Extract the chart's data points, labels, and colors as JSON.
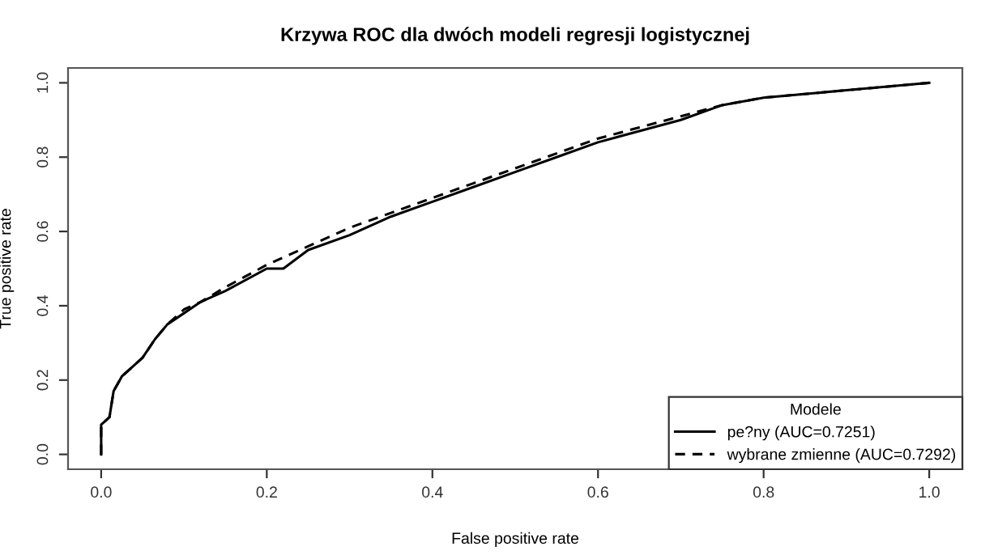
{
  "chart_data": {
    "type": "line",
    "title": "Krzywa ROC dla dwóch modeli regresji logistycznej",
    "xlabel": "False positive rate",
    "ylabel": "True positive rate",
    "legend_title": "Modele",
    "legend": "bottom right",
    "grid": false,
    "marker": "none",
    "xlim": [
      -0.04,
      1.04
    ],
    "ylim": [
      -0.04,
      1.04
    ],
    "xticks": [
      {
        "value": 0,
        "label": "0.0"
      },
      0.2,
      0.4,
      0.6,
      0.8,
      {
        "value": 1,
        "label": "1.0"
      }
    ],
    "yticks": [
      {
        "value": 0,
        "label": "0.0"
      },
      0.2,
      0.4,
      0.6,
      0.8,
      {
        "value": 1,
        "label": "1.0"
      }
    ],
    "series": [
      {
        "name": "pe?ny (AUC=0.7251)",
        "color": "#000000",
        "line_style": "solid",
        "x": [
          0,
          0,
          0.005,
          0.01,
          0.015,
          0.025,
          0.04,
          0.05,
          0.065,
          0.08,
          0.1,
          0.12,
          0.15,
          0.2,
          0.22,
          0.25,
          0.3,
          0.35,
          0.4,
          0.45,
          0.5,
          0.55,
          0.6,
          0.65,
          0.7,
          0.75,
          0.8,
          0.9,
          1
        ],
        "values": [
          0,
          0.08,
          0.09,
          0.1,
          0.17,
          0.21,
          0.24,
          0.26,
          0.31,
          0.35,
          0.38,
          0.41,
          0.44,
          0.5,
          0.5,
          0.55,
          0.59,
          0.64,
          0.68,
          0.72,
          0.76,
          0.8,
          0.84,
          0.87,
          0.9,
          0.94,
          0.96,
          0.98,
          1
        ]
      },
      {
        "name": "wybrane zmienne (AUC=0.7292)",
        "color": "#000000",
        "line_style": "dashed",
        "x": [
          0,
          0,
          0.005,
          0.01,
          0.015,
          0.025,
          0.04,
          0.05,
          0.065,
          0.08,
          0.1,
          0.12,
          0.15,
          0.2,
          0.25,
          0.3,
          0.35,
          0.4,
          0.45,
          0.5,
          0.55,
          0.6,
          0.65,
          0.7,
          0.75,
          0.8,
          0.9,
          1
        ],
        "values": [
          0,
          0.08,
          0.09,
          0.1,
          0.17,
          0.21,
          0.24,
          0.26,
          0.31,
          0.35,
          0.39,
          0.41,
          0.45,
          0.51,
          0.56,
          0.61,
          0.65,
          0.69,
          0.73,
          0.77,
          0.81,
          0.85,
          0.88,
          0.91,
          0.94,
          0.96,
          0.98,
          1
        ]
      }
    ]
  }
}
